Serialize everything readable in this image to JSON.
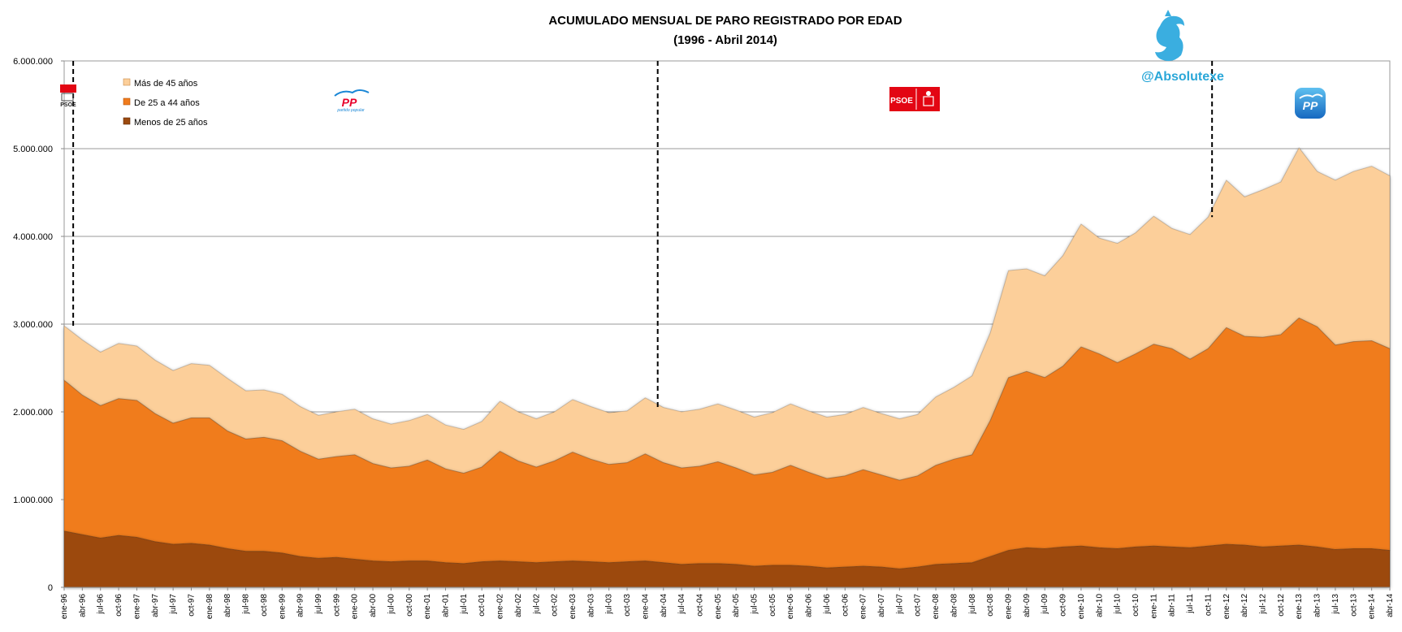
{
  "chart_data": {
    "type": "area",
    "stacked": true,
    "title": "ACUMULADO MENSUAL DE PARO REGISTRADO POR EDAD",
    "subtitle": "(1996 - Abril 2014)",
    "ylim": [
      0,
      6000000
    ],
    "yticks": [
      0,
      1000000,
      2000000,
      3000000,
      4000000,
      5000000,
      6000000
    ],
    "ytick_labels": [
      "0",
      "1.000.000",
      "2.000.000",
      "3.000.000",
      "4.000.000",
      "5.000.000",
      "6.000.000"
    ],
    "x_tick_labels": [
      "ene-96",
      "abr-96",
      "jul-96",
      "oct-96",
      "ene-97",
      "abr-97",
      "jul-97",
      "oct-97",
      "ene-98",
      "abr-98",
      "jul-98",
      "oct-98",
      "ene-99",
      "abr-99",
      "jul-99",
      "oct-99",
      "ene-00",
      "abr-00",
      "jul-00",
      "oct-00",
      "ene-01",
      "abr-01",
      "jul-01",
      "oct-01",
      "ene-02",
      "abr-02",
      "jul-02",
      "oct-02",
      "ene-03",
      "abr-03",
      "jul-03",
      "oct-03",
      "ene-04",
      "abr-04",
      "jul-04",
      "oct-04",
      "ene-05",
      "abr-05",
      "jul-05",
      "oct-05",
      "ene-06",
      "abr-06",
      "jul-06",
      "oct-06",
      "ene-07",
      "abr-07",
      "jul-07",
      "oct-07",
      "ene-08",
      "abr-08",
      "jul-08",
      "oct-08",
      "ene-09",
      "abr-09",
      "jul-09",
      "oct-09",
      "ene-10",
      "abr-10",
      "jul-10",
      "oct-10",
      "ene-11",
      "abr-11",
      "jul-11",
      "oct-11",
      "ene-12",
      "abr-12",
      "jul-12",
      "oct-12",
      "ene-13",
      "abr-13",
      "jul-13",
      "oct-13",
      "ene-14",
      "abr-14"
    ],
    "gridlines": "horizontal",
    "legend_position": "top-left",
    "series": [
      {
        "name": "Menos de 25 años",
        "color": "#9c4a0f",
        "values": [
          640000,
          600000,
          560000,
          590000,
          570000,
          520000,
          490000,
          500000,
          480000,
          440000,
          410000,
          410000,
          390000,
          350000,
          330000,
          340000,
          320000,
          300000,
          290000,
          300000,
          300000,
          280000,
          270000,
          290000,
          300000,
          290000,
          280000,
          290000,
          300000,
          290000,
          280000,
          290000,
          300000,
          280000,
          260000,
          270000,
          270000,
          260000,
          240000,
          250000,
          250000,
          240000,
          220000,
          230000,
          240000,
          230000,
          210000,
          230000,
          260000,
          270000,
          280000,
          350000,
          420000,
          450000,
          440000,
          460000,
          470000,
          450000,
          440000,
          460000,
          470000,
          460000,
          450000,
          470000,
          490000,
          480000,
          460000,
          470000,
          480000,
          460000,
          430000,
          440000,
          440000,
          420000
        ]
      },
      {
        "name": "De 25 a 44 años",
        "color": "#f07b1c",
        "values": [
          1720000,
          1590000,
          1510000,
          1560000,
          1560000,
          1460000,
          1380000,
          1430000,
          1450000,
          1340000,
          1280000,
          1300000,
          1280000,
          1200000,
          1130000,
          1150000,
          1190000,
          1110000,
          1070000,
          1080000,
          1150000,
          1070000,
          1030000,
          1080000,
          1250000,
          1150000,
          1090000,
          1150000,
          1240000,
          1170000,
          1120000,
          1130000,
          1220000,
          1140000,
          1100000,
          1110000,
          1160000,
          1100000,
          1040000,
          1060000,
          1140000,
          1070000,
          1020000,
          1040000,
          1100000,
          1050000,
          1010000,
          1040000,
          1130000,
          1190000,
          1230000,
          1550000,
          1970000,
          2010000,
          1950000,
          2060000,
          2270000,
          2210000,
          2120000,
          2200000,
          2300000,
          2260000,
          2150000,
          2250000,
          2470000,
          2380000,
          2390000,
          2410000,
          2590000,
          2510000,
          2330000,
          2360000,
          2370000,
          2300000
        ]
      },
      {
        "name": "Más de 45 años",
        "color": "#fccf9a",
        "values": [
          620000,
          630000,
          610000,
          630000,
          620000,
          610000,
          600000,
          620000,
          600000,
          600000,
          550000,
          540000,
          530000,
          510000,
          500000,
          510000,
          520000,
          510000,
          500000,
          520000,
          520000,
          500000,
          500000,
          520000,
          570000,
          560000,
          550000,
          560000,
          600000,
          600000,
          590000,
          590000,
          640000,
          630000,
          640000,
          650000,
          660000,
          660000,
          660000,
          680000,
          700000,
          700000,
          700000,
          700000,
          710000,
          700000,
          700000,
          700000,
          780000,
          820000,
          900000,
          1000000,
          1220000,
          1170000,
          1160000,
          1260000,
          1400000,
          1320000,
          1360000,
          1380000,
          1460000,
          1370000,
          1420000,
          1500000,
          1680000,
          1590000,
          1680000,
          1740000,
          1940000,
          1770000,
          1880000,
          1940000,
          1990000,
          1970000
        ]
      }
    ],
    "legend_entries": [
      "Más de 45 años",
      "De 25 a 44 años",
      "Menos de 25 años"
    ],
    "separators_at_month_index": [
      1.5,
      98.5,
      190.5
    ]
  },
  "logos": {
    "brand_handle": "@Absolutexe",
    "psoe_small": "PSOE",
    "pp_small": "PP",
    "pp_small_sub": "partido popular",
    "psoe_big": "PSOE",
    "pp_big": "PP"
  },
  "colors": {
    "mas45": "#fccf9a",
    "de25a44": "#f07b1c",
    "menos25": "#9c4a0f",
    "brand": "#2aa7d8",
    "psoe_red": "#e30613",
    "pp_blue": "#1a87d6"
  }
}
